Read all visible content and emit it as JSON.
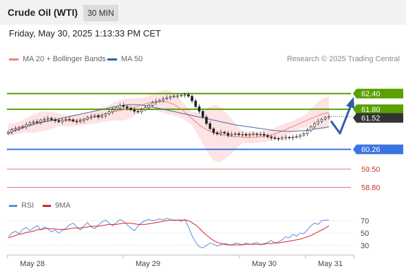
{
  "header": {
    "title": "Crude Oil (WTI)",
    "timeframe": "30 MIN",
    "timestamp": "Friday, May 30, 2025 1:13:33 PM CET"
  },
  "legend": {
    "ma20_label": "MA 20 + Bollinger Bands",
    "ma50_label": "MA 50",
    "credit": "Research © 2025 Trading Central",
    "rsi_label": "RSI",
    "ma9_label": "9MA"
  },
  "colors": {
    "ma20": "#f08080",
    "ma50": "#4a6b9c",
    "bollinger_fill": "#fde3e3",
    "resistance": "#5aa000",
    "support": "#3b73e0",
    "support_secondary": "#e07070",
    "rsi": "#5b8de0",
    "rsi_ma": "#e02020",
    "arrow": "#2d5ea8",
    "current_price_badge": "#333333"
  },
  "icons": {
    "forecast_arrow": "up-arrow-icon"
  },
  "chart_data": [
    {
      "type": "candlestick",
      "title": "Crude Oil (WTI)",
      "timeframe": "30 MIN",
      "x_labels": [
        "May 28",
        "May 29",
        "May 30",
        "May 31"
      ],
      "ylim": [
        58.5,
        62.8
      ],
      "current_price": 61.52,
      "levels": [
        {
          "value": 62.4,
          "label": "62.40",
          "kind": "resistance"
        },
        {
          "value": 61.8,
          "label": "61.80",
          "kind": "resistance"
        },
        {
          "value": 60.26,
          "label": "60.26",
          "kind": "support-pivot"
        },
        {
          "value": 59.5,
          "label": "59.50",
          "kind": "support"
        },
        {
          "value": 58.8,
          "label": "58.80",
          "kind": "support"
        }
      ],
      "close": [
        60.92,
        61.0,
        61.05,
        61.1,
        61.12,
        61.2,
        61.28,
        61.32,
        61.3,
        61.38,
        61.42,
        61.45,
        61.4,
        61.36,
        61.32,
        61.38,
        61.42,
        61.4,
        61.34,
        61.32,
        61.36,
        61.42,
        61.48,
        61.52,
        61.56,
        61.5,
        61.55,
        61.62,
        61.7,
        61.78,
        61.85,
        61.95,
        61.9,
        61.84,
        61.78,
        61.72,
        61.7,
        61.78,
        61.86,
        61.95,
        62.05,
        62.1,
        62.14,
        62.2,
        62.24,
        62.28,
        62.3,
        62.32,
        62.34,
        62.36,
        62.3,
        62.12,
        61.9,
        61.72,
        61.5,
        61.25,
        61.05,
        60.9,
        60.85,
        60.92,
        60.88,
        60.8,
        60.84,
        60.86,
        60.82,
        60.84,
        60.8,
        60.83,
        60.85,
        60.82,
        60.84,
        60.8,
        60.74,
        60.7,
        60.68,
        60.66,
        60.7,
        60.72,
        60.7,
        60.73,
        60.75,
        60.8,
        60.86,
        60.98,
        61.12,
        61.24,
        61.34,
        61.42,
        61.48,
        61.52
      ],
      "ma20": [
        61.0,
        61.03,
        61.06,
        61.1,
        61.14,
        61.18,
        61.22,
        61.25,
        61.28,
        61.32,
        61.34,
        61.36,
        61.37,
        61.38,
        61.38,
        61.37,
        61.36,
        61.36,
        61.37,
        61.38,
        61.39,
        61.41,
        61.44,
        61.47,
        61.5,
        61.54,
        61.58,
        61.62,
        61.66,
        61.7,
        61.73,
        61.75,
        61.78,
        61.81,
        61.84,
        61.88,
        61.92,
        61.96,
        62.0,
        62.04,
        62.07,
        62.09,
        62.1,
        62.1,
        62.08,
        62.04,
        61.98,
        61.9,
        61.8,
        61.68,
        61.56,
        61.44,
        61.32,
        61.2,
        61.1,
        61.02,
        60.95,
        60.9,
        60.86,
        60.83,
        60.8,
        60.78,
        60.76,
        60.75,
        60.74,
        60.73,
        60.72,
        60.72,
        60.72,
        60.73,
        60.74,
        60.76,
        60.78,
        60.82,
        60.86,
        60.9,
        60.96,
        61.02,
        61.08,
        61.14,
        61.2,
        61.26,
        61.32,
        61.38,
        61.44,
        61.5,
        61.55,
        61.6,
        61.64,
        61.68
      ],
      "ma50": [
        60.86,
        60.92,
        60.98,
        61.03,
        61.08,
        61.13,
        61.17,
        61.21,
        61.25,
        61.28,
        61.31,
        61.34,
        61.37,
        61.4,
        61.43,
        61.46,
        61.49,
        61.52,
        61.55,
        61.58,
        61.61,
        61.64,
        61.67,
        61.7,
        61.73,
        61.76,
        61.79,
        61.82,
        61.85,
        61.88,
        61.91,
        61.93,
        61.95,
        61.97,
        61.98,
        61.98,
        61.97,
        61.96,
        61.94,
        61.92,
        61.89,
        61.86,
        61.83,
        61.8,
        61.77,
        61.74,
        61.71,
        61.68,
        61.65,
        61.62,
        61.59,
        61.56,
        61.53,
        61.5,
        61.47,
        61.44,
        61.41,
        61.38,
        61.35,
        61.32,
        61.29,
        61.26,
        61.23,
        61.2,
        61.18,
        61.16,
        61.14,
        61.12,
        61.1,
        61.08,
        61.06,
        61.04,
        61.02,
        61.0,
        60.98,
        60.97,
        60.96,
        60.95,
        60.95,
        60.95,
        60.96,
        60.97,
        60.98,
        61.0,
        61.02,
        61.04,
        61.06,
        61.08,
        61.1,
        61.12
      ]
    },
    {
      "type": "line",
      "title": "RSI",
      "y_ticks": [
        70,
        50,
        30
      ],
      "ylim": [
        20,
        80
      ],
      "series": [
        {
          "name": "RSI",
          "values": [
            44,
            50,
            53,
            49,
            56,
            59,
            54,
            58,
            62,
            55,
            60,
            57,
            52,
            55,
            50,
            54,
            58,
            63,
            66,
            60,
            55,
            62,
            67,
            60,
            57,
            63,
            68,
            71,
            66,
            62,
            67,
            72,
            69,
            63,
            58,
            54,
            61,
            67,
            70,
            72,
            70,
            71,
            73,
            71,
            74,
            72,
            70,
            71,
            69,
            72,
            60,
            46,
            35,
            28,
            26,
            30,
            34,
            32,
            29,
            31,
            33,
            32,
            30,
            34,
            33,
            31,
            34,
            32,
            33,
            35,
            31,
            33,
            35,
            38,
            34,
            36,
            39,
            44,
            42,
            48,
            45,
            50,
            49,
            55,
            62,
            66,
            64,
            70,
            71,
            71
          ]
        },
        {
          "name": "9MA",
          "values": [
            42,
            44,
            46,
            48,
            49,
            51,
            52,
            53,
            55,
            56,
            57,
            57,
            57,
            57,
            56,
            56,
            56,
            57,
            58,
            58,
            58,
            59,
            60,
            61,
            61,
            61,
            62,
            63,
            64,
            64,
            64,
            65,
            66,
            66,
            66,
            65,
            64,
            64,
            64,
            65,
            66,
            67,
            68,
            69,
            70,
            71,
            71,
            71,
            71,
            71,
            70,
            67,
            63,
            58,
            52,
            47,
            42,
            38,
            35,
            33,
            32,
            31,
            31,
            31,
            31,
            31,
            32,
            32,
            32,
            32,
            32,
            32,
            33,
            33,
            34,
            34,
            35,
            36,
            37,
            38,
            39,
            40,
            42,
            44,
            46,
            49,
            52,
            55,
            58,
            62
          ]
        }
      ]
    }
  ]
}
